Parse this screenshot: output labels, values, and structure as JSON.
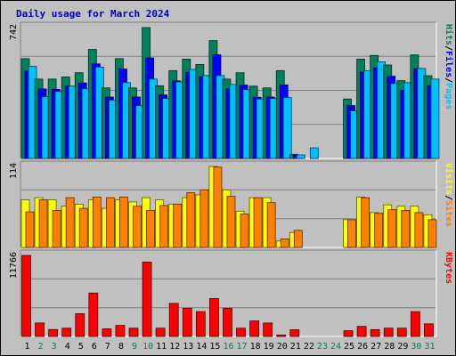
{
  "chart_data": {
    "type": "bar",
    "title": "Daily usage for March 2024",
    "days": [
      "1",
      "2",
      "3",
      "4",
      "5",
      "6",
      "7",
      "8",
      "9",
      "10",
      "11",
      "12",
      "13",
      "14",
      "15",
      "16",
      "17",
      "18",
      "19",
      "20",
      "21",
      "22",
      "23",
      "24",
      "25",
      "26",
      "27",
      "28",
      "29",
      "30",
      "31"
    ],
    "weekend_days": [
      "2",
      "3",
      "9",
      "10",
      "16",
      "17",
      "23",
      "24",
      "30",
      "31"
    ],
    "panels": [
      {
        "name": "hits-files-pages",
        "ymax": 742,
        "ymax_label": "742",
        "legend": [
          "Pages",
          "Files",
          "Hits"
        ],
        "series": [
          {
            "name": "Hits",
            "color": "#00805c",
            "values": [
              566,
              450,
              450,
              462,
              486,
              618,
              400,
              566,
              400,
              742,
              412,
              498,
              563,
              533,
              668,
              450,
              486,
              410,
              400,
              498,
              24,
              0,
              0,
              0,
              337,
              563,
              584,
              530,
              441,
              587,
              469
            ]
          },
          {
            "name": "Files",
            "color": "#0000ff",
            "values": [
              495,
              394,
              392,
              410,
              428,
              536,
              348,
              507,
              348,
              570,
              360,
              440,
              488,
              463,
              588,
              394,
              416,
              347,
              348,
              417,
              18,
              0,
              0,
              0,
              300,
              490,
              513,
              466,
              385,
              510,
              410
            ]
          },
          {
            "name": "Pages",
            "color": "#00c0ff",
            "values": [
              522,
              350,
              380,
              410,
              395,
              518,
              330,
              430,
              300,
              450,
              340,
              434,
              505,
              470,
              470,
              420,
              390,
              337,
              340,
              345,
              20,
              60,
              0,
              0,
              270,
              497,
              548,
              425,
              430,
              510,
              450
            ]
          }
        ]
      },
      {
        "name": "visits-sites",
        "ymax": 114,
        "ymax_label": "114",
        "legend": [
          "Sites",
          "Visits"
        ],
        "series": [
          {
            "name": "Visits",
            "color": "#ffff00",
            "values": [
              67,
              70,
              67,
              58,
              61,
              67,
              55,
              67,
              64,
              70,
              67,
              61,
              70,
              74,
              114,
              81,
              51,
              70,
              70,
              9,
              21,
              0,
              0,
              0,
              39,
              71,
              49,
              60,
              58,
              58,
              46
            ]
          },
          {
            "name": "Sites",
            "color": "#ff8000",
            "values": [
              50,
              67,
              52,
              70,
              55,
              71,
              70,
              71,
              58,
              52,
              59,
              61,
              77,
              81,
              113,
              72,
              47,
              70,
              63,
              12,
              24,
              0,
              0,
              0,
              39,
              70,
              48,
              53,
              52,
              49,
              39
            ]
          }
        ]
      },
      {
        "name": "kbytes",
        "ymax": 11766,
        "ymax_label": "11766",
        "legend": [
          "KBytes"
        ],
        "series": [
          {
            "name": "KBytes",
            "color": "#ff0000",
            "values": [
              11766,
              1950,
              1000,
              1200,
              3300,
              6300,
              1100,
              1600,
              1200,
              10800,
              1200,
              4800,
              4100,
              3600,
              5500,
              4100,
              1200,
              2250,
              1950,
              200,
              970,
              0,
              0,
              0,
              830,
              1460,
              990,
              1200,
              1200,
              3600,
              1830
            ]
          }
        ]
      }
    ]
  }
}
